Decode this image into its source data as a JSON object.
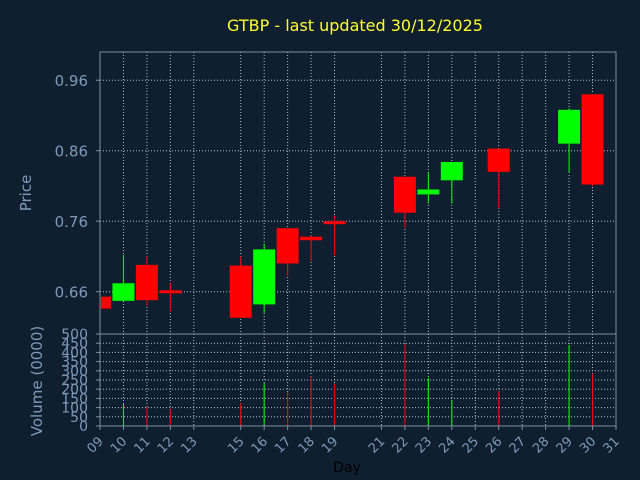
{
  "chart_data": {
    "type": "candlestick",
    "title": "GTBP - last updated 30/12/2025",
    "xlabel": "Day",
    "price_panel": {
      "ylabel": "Price",
      "ylim": [
        0.6,
        1.0
      ],
      "yticks": [
        0.66,
        0.76,
        0.86,
        0.96
      ],
      "ytick_labels": [
        "0.66",
        "0.76",
        "0.86",
        "0.96"
      ],
      "grid": true
    },
    "volume_panel": {
      "ylabel": "Volume (0000)",
      "ylim": [
        0,
        500
      ],
      "yticks": [
        0,
        50,
        100,
        150,
        200,
        250,
        300,
        350,
        400,
        450,
        500
      ],
      "ytick_labels": [
        "0",
        "50",
        "100",
        "150",
        "200",
        "250",
        "300",
        "350",
        "400",
        "450",
        "500"
      ],
      "grid": true
    },
    "xlim": [
      9,
      31
    ],
    "xticks": [
      9,
      10,
      11,
      12,
      13,
      15,
      16,
      17,
      18,
      19,
      21,
      22,
      23,
      24,
      25,
      26,
      27,
      28,
      29,
      30,
      31
    ],
    "xtick_labels": [
      "09",
      "10",
      "11",
      "12",
      "13",
      "15",
      "16",
      "17",
      "18",
      "19",
      "21",
      "22",
      "23",
      "24",
      "25",
      "26",
      "27",
      "28",
      "29",
      "30",
      "31"
    ],
    "colors": {
      "up": "#00ff00",
      "down": "#ff0000",
      "title": "#ffff33",
      "axis_text": "#7e9ab9",
      "background": "#0f1f30"
    },
    "candles": [
      {
        "day": 9,
        "open": 0.653,
        "high": 0.653,
        "low": 0.636,
        "close": 0.636,
        "volume": 0
      },
      {
        "day": 10,
        "open": 0.647,
        "high": 0.712,
        "low": 0.647,
        "close": 0.672,
        "volume": 120
      },
      {
        "day": 11,
        "open": 0.698,
        "high": 0.71,
        "low": 0.64,
        "close": 0.648,
        "volume": 105
      },
      {
        "day": 12,
        "open": 0.662,
        "high": 0.672,
        "low": 0.632,
        "close": 0.66,
        "volume": 90
      },
      {
        "day": 15,
        "open": 0.697,
        "high": 0.71,
        "low": 0.623,
        "close": 0.623,
        "volume": 125
      },
      {
        "day": 16,
        "open": 0.642,
        "high": 0.728,
        "low": 0.63,
        "close": 0.72,
        "volume": 235
      },
      {
        "day": 17,
        "open": 0.75,
        "high": 0.75,
        "low": 0.683,
        "close": 0.7,
        "volume": 185
      },
      {
        "day": 18,
        "open": 0.738,
        "high": 0.74,
        "low": 0.703,
        "close": 0.733,
        "volume": 270
      },
      {
        "day": 19,
        "open": 0.76,
        "high": 0.768,
        "low": 0.712,
        "close": 0.756,
        "volume": 230
      },
      {
        "day": 22,
        "open": 0.823,
        "high": 0.823,
        "low": 0.75,
        "close": 0.772,
        "volume": 445
      },
      {
        "day": 23,
        "open": 0.798,
        "high": 0.83,
        "low": 0.785,
        "close": 0.805,
        "volume": 260
      },
      {
        "day": 24,
        "open": 0.818,
        "high": 0.844,
        "low": 0.785,
        "close": 0.844,
        "volume": 140
      },
      {
        "day": 26,
        "open": 0.863,
        "high": 0.863,
        "low": 0.778,
        "close": 0.83,
        "volume": 190
      },
      {
        "day": 29,
        "open": 0.87,
        "high": 0.92,
        "low": 0.83,
        "close": 0.918,
        "volume": 440
      },
      {
        "day": 30,
        "open": 0.94,
        "high": 0.94,
        "low": 0.81,
        "close": 0.812,
        "volume": 285
      }
    ]
  }
}
